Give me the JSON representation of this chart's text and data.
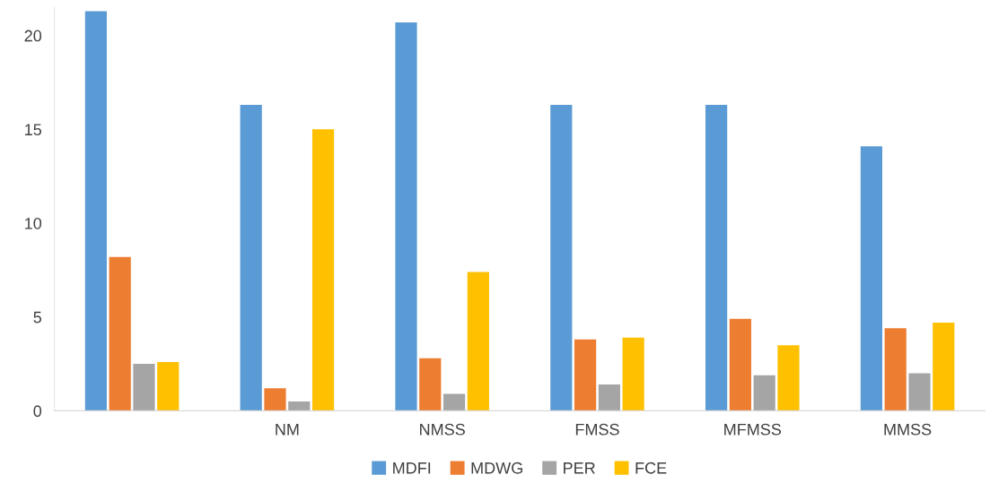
{
  "chart_data": {
    "type": "bar",
    "categories": [
      null,
      "NM",
      "NMSS",
      "FMSS",
      "MFMSS",
      "MMSS"
    ],
    "series": [
      {
        "name": "MDFI",
        "color": "#5b9bd5",
        "values": [
          21.3,
          16.3,
          20.7,
          16.3,
          16.3,
          14.1
        ]
      },
      {
        "name": "MDWG",
        "color": "#ed7d31",
        "values": [
          8.2,
          1.2,
          2.8,
          3.8,
          4.9,
          4.4
        ]
      },
      {
        "name": "PER",
        "color": "#a5a5a5",
        "values": [
          2.5,
          0.5,
          0.9,
          1.4,
          1.9,
          2.0
        ]
      },
      {
        "name": "FCE",
        "color": "#ffc000",
        "values": [
          2.6,
          15.0,
          7.4,
          3.9,
          3.5,
          4.7
        ]
      }
    ],
    "ylim": [
      0,
      21.5
    ],
    "yticks": [
      0,
      5,
      10,
      15,
      20
    ],
    "grid": false,
    "legend": "bottom"
  }
}
